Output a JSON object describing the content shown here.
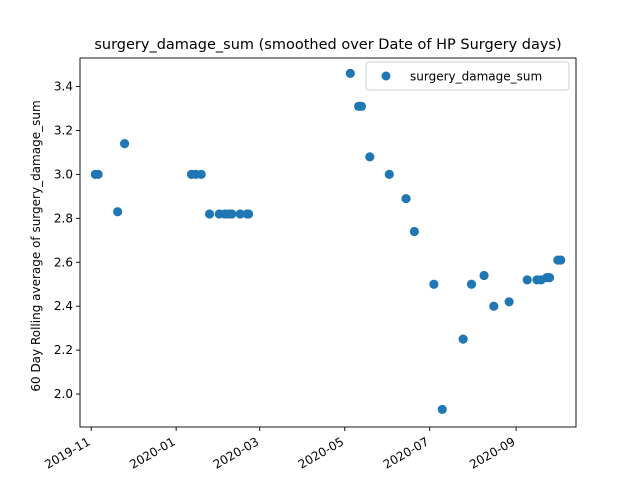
{
  "chart_data": {
    "type": "scatter",
    "title": "surgery_damage_sum (smoothed over Date of HP Surgery days)",
    "xlabel": "",
    "ylabel": "60 Day Rolling average of surgery_damage_sum",
    "xlim": [
      "2019-10-24",
      "2020-10-14"
    ],
    "ylim": [
      1.85,
      3.53
    ],
    "x_ticks": [
      "2019-11",
      "2020-01",
      "2020-03",
      "2020-05",
      "2020-07",
      "2020-09"
    ],
    "y_ticks": [
      2.0,
      2.2,
      2.4,
      2.6,
      2.8,
      3.0,
      3.2,
      3.4
    ],
    "grid": false,
    "legend_position": "upper right",
    "series": [
      {
        "name": "surgery_damage_sum",
        "color": "#1f77b4",
        "points": [
          {
            "x": "2019-11-04",
            "y": 3.0
          },
          {
            "x": "2019-11-06",
            "y": 3.0
          },
          {
            "x": "2019-11-20",
            "y": 2.83
          },
          {
            "x": "2019-11-25",
            "y": 3.14
          },
          {
            "x": "2020-01-12",
            "y": 3.0
          },
          {
            "x": "2020-01-15",
            "y": 3.0
          },
          {
            "x": "2020-01-19",
            "y": 3.0
          },
          {
            "x": "2020-01-25",
            "y": 2.82
          },
          {
            "x": "2020-02-01",
            "y": 2.82
          },
          {
            "x": "2020-02-05",
            "y": 2.82
          },
          {
            "x": "2020-02-08",
            "y": 2.82
          },
          {
            "x": "2020-02-10",
            "y": 2.82
          },
          {
            "x": "2020-02-16",
            "y": 2.82
          },
          {
            "x": "2020-02-21",
            "y": 2.82
          },
          {
            "x": "2020-02-22",
            "y": 2.82
          },
          {
            "x": "2020-05-05",
            "y": 3.46
          },
          {
            "x": "2020-05-11",
            "y": 3.31
          },
          {
            "x": "2020-05-13",
            "y": 3.31
          },
          {
            "x": "2020-05-19",
            "y": 3.08
          },
          {
            "x": "2020-06-02",
            "y": 3.0
          },
          {
            "x": "2020-06-14",
            "y": 2.89
          },
          {
            "x": "2020-06-20",
            "y": 2.74
          },
          {
            "x": "2020-07-04",
            "y": 2.5
          },
          {
            "x": "2020-07-10",
            "y": 1.93
          },
          {
            "x": "2020-07-25",
            "y": 2.25
          },
          {
            "x": "2020-07-31",
            "y": 2.5
          },
          {
            "x": "2020-08-09",
            "y": 2.54
          },
          {
            "x": "2020-08-16",
            "y": 2.4
          },
          {
            "x": "2020-08-27",
            "y": 2.42
          },
          {
            "x": "2020-09-09",
            "y": 2.52
          },
          {
            "x": "2020-09-16",
            "y": 2.52
          },
          {
            "x": "2020-09-19",
            "y": 2.52
          },
          {
            "x": "2020-09-23",
            "y": 2.53
          },
          {
            "x": "2020-09-25",
            "y": 2.53
          },
          {
            "x": "2020-10-01",
            "y": 2.61
          },
          {
            "x": "2020-10-03",
            "y": 2.61
          }
        ]
      }
    ]
  }
}
